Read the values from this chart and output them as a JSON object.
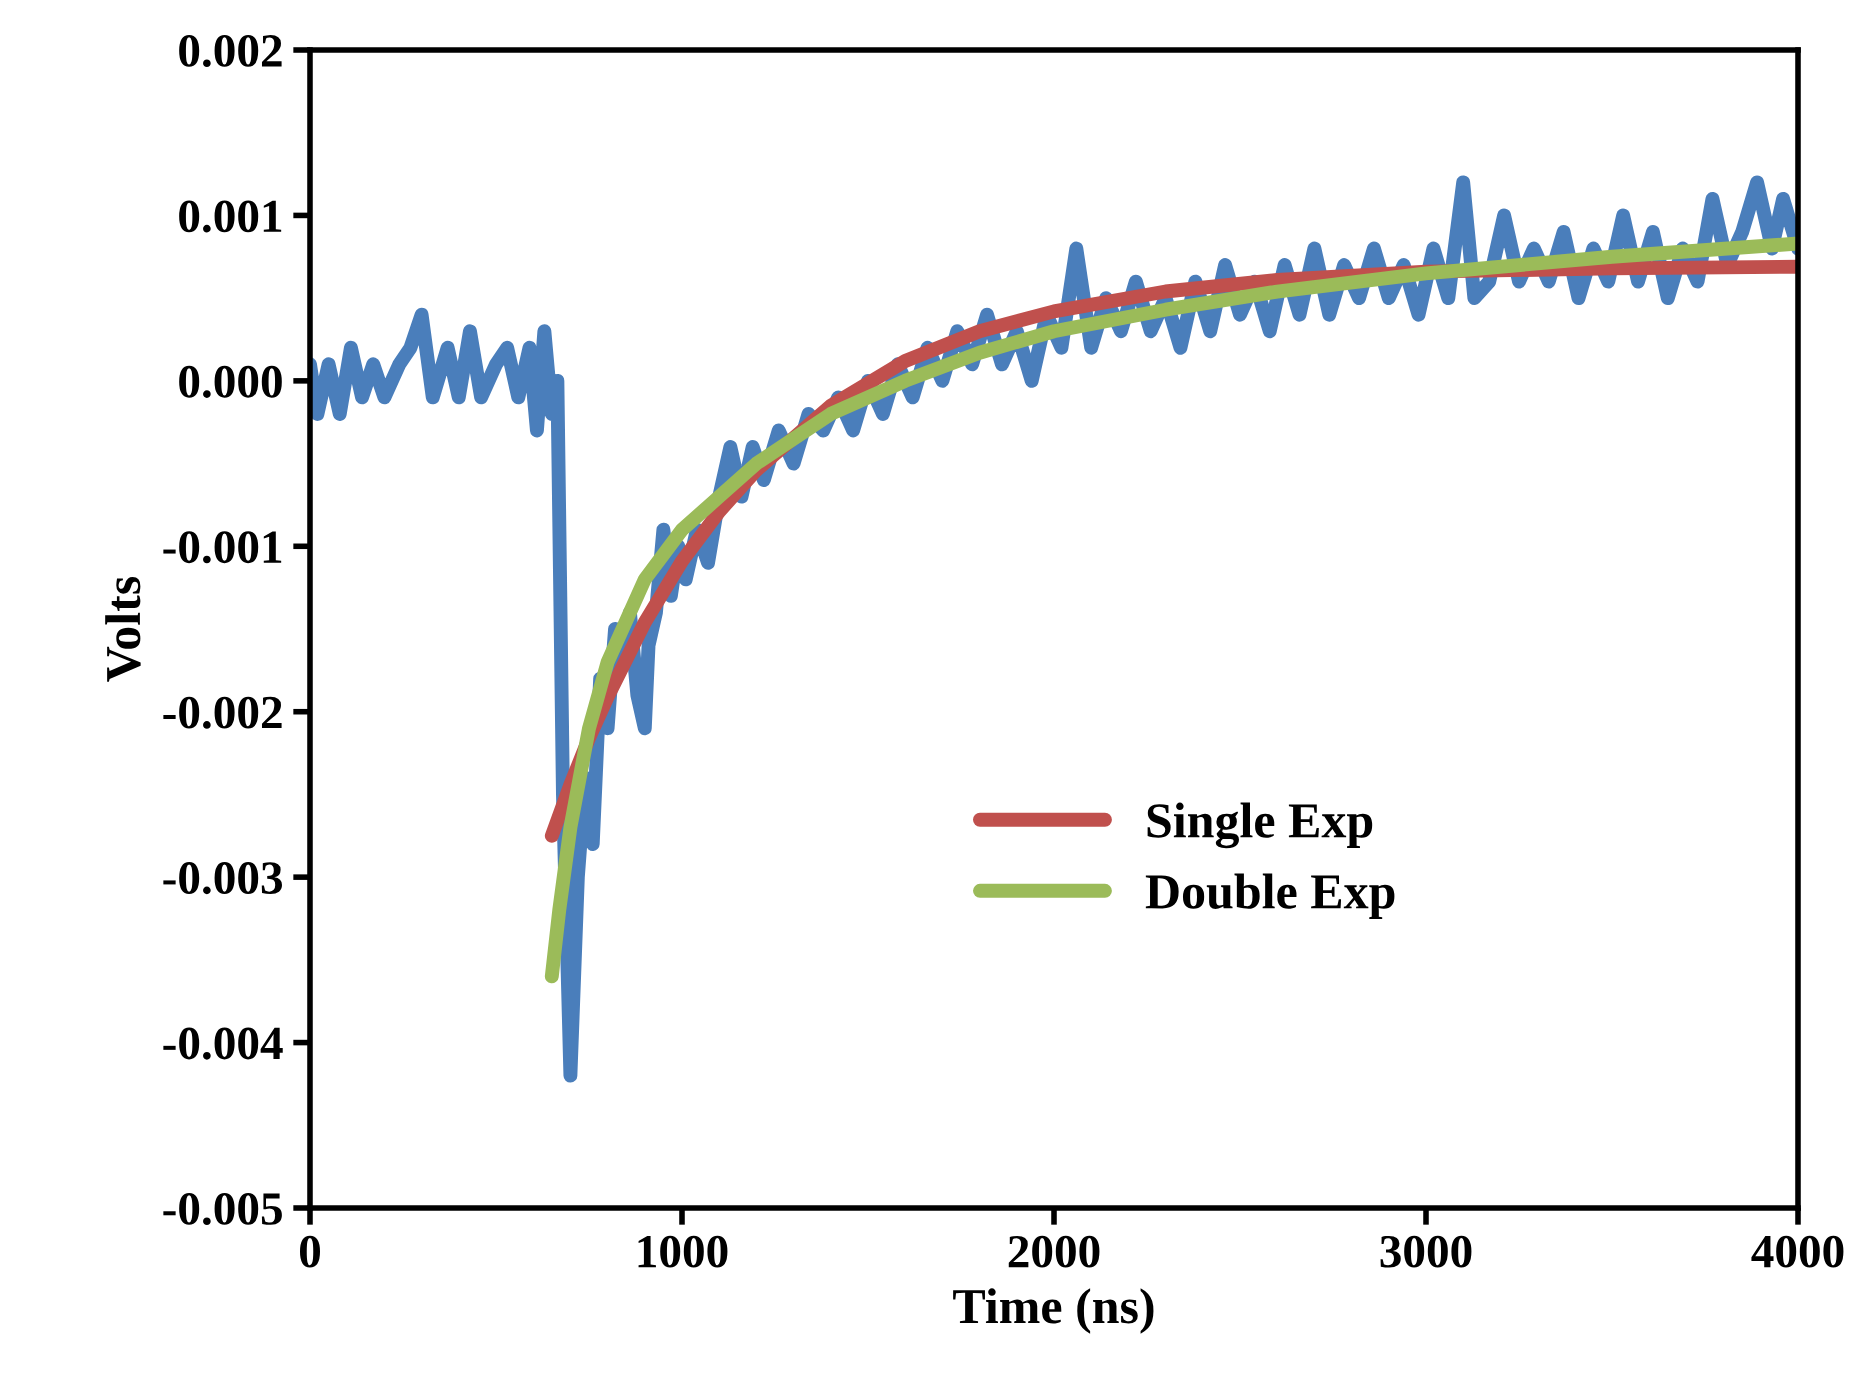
{
  "chart_data": {
    "type": "line",
    "xlabel": "Time (ns)",
    "ylabel": "Volts",
    "xlim": [
      0,
      4000
    ],
    "xticks": [
      0,
      1000,
      2000,
      3000,
      4000
    ],
    "ylim": [
      -0.005,
      0.002
    ],
    "yticks": [
      {
        "value": -0.005,
        "label": "-0.005"
      },
      {
        "value": -0.004,
        "label": "-0.004"
      },
      {
        "value": -0.003,
        "label": "-0.003"
      },
      {
        "value": -0.002,
        "label": "-0.002"
      },
      {
        "value": -0.001,
        "label": "-0.001"
      },
      {
        "value": 0,
        "label": "0.000"
      },
      {
        "value": 0.001,
        "label": "0.001"
      },
      {
        "value": 0.002,
        "label": "0.002"
      }
    ],
    "grid": false,
    "legend": "right",
    "marker": "none",
    "line_style": "solid",
    "series": [
      {
        "color": "#4a7ebb",
        "x": [
          0,
          20,
          50,
          80,
          110,
          140,
          170,
          200,
          240,
          270,
          300,
          330,
          370,
          400,
          430,
          460,
          500,
          530,
          560,
          590,
          610,
          630,
          650,
          665,
          680,
          700,
          720,
          740,
          760,
          780,
          800,
          820,
          840,
          860,
          880,
          900,
          910,
          930,
          950,
          970,
          990,
          1010,
          1040,
          1070,
          1100,
          1130,
          1160,
          1190,
          1220,
          1260,
          1300,
          1340,
          1380,
          1420,
          1460,
          1500,
          1540,
          1580,
          1620,
          1660,
          1700,
          1740,
          1780,
          1820,
          1860,
          1900,
          1940,
          1980,
          2020,
          2060,
          2100,
          2140,
          2180,
          2220,
          2260,
          2300,
          2340,
          2380,
          2420,
          2460,
          2500,
          2540,
          2580,
          2620,
          2660,
          2700,
          2740,
          2780,
          2820,
          2860,
          2900,
          2940,
          2980,
          3020,
          3060,
          3100,
          3130,
          3170,
          3210,
          3250,
          3290,
          3330,
          3370,
          3410,
          3450,
          3490,
          3530,
          3570,
          3610,
          3650,
          3690,
          3730,
          3770,
          3810,
          3850,
          3890,
          3930,
          3960,
          4000
        ],
        "values": [
          0.0001,
          -0.0002,
          0.0001,
          -0.0002,
          0.0002,
          -0.0001,
          0.0001,
          -0.0001,
          0.0001,
          0.0002,
          0.0004,
          -0.0001,
          0.0002,
          -0.0001,
          0.0003,
          -0.0001,
          0.0001,
          0.0002,
          -0.0001,
          0.0002,
          -0.0003,
          0.0003,
          -0.0002,
          0.0,
          -0.0025,
          -0.0042,
          -0.003,
          -0.0024,
          -0.0028,
          -0.0018,
          -0.0021,
          -0.0015,
          -0.0017,
          -0.0014,
          -0.0019,
          -0.0021,
          -0.0016,
          -0.0014,
          -0.0009,
          -0.0013,
          -0.001,
          -0.0012,
          -0.0009,
          -0.0011,
          -0.0007,
          -0.0004,
          -0.0007,
          -0.0004,
          -0.0006,
          -0.0003,
          -0.0005,
          -0.0002,
          -0.0003,
          -0.0001,
          -0.0003,
          0.0,
          -0.0002,
          0.0001,
          -0.0001,
          0.0002,
          0.0,
          0.0003,
          0.0001,
          0.0004,
          0.0001,
          0.0003,
          0.0,
          0.0004,
          0.0002,
          0.0008,
          0.0002,
          0.0005,
          0.0003,
          0.0006,
          0.0003,
          0.0005,
          0.0002,
          0.0006,
          0.0003,
          0.0007,
          0.0004,
          0.0006,
          0.0003,
          0.0007,
          0.0004,
          0.0008,
          0.0004,
          0.0007,
          0.0005,
          0.0008,
          0.0005,
          0.0007,
          0.0004,
          0.0008,
          0.0005,
          0.0012,
          0.0005,
          0.0006,
          0.001,
          0.0006,
          0.0008,
          0.0006,
          0.0009,
          0.0005,
          0.0008,
          0.0006,
          0.001,
          0.0006,
          0.0009,
          0.0005,
          0.0008,
          0.0006,
          0.0011,
          0.0007,
          0.0009,
          0.0012,
          0.0008,
          0.0011,
          0.0008
        ]
      },
      {
        "name": "Single Exp",
        "color": "#c0504d",
        "x": [
          650,
          700,
          750,
          800,
          900,
          1000,
          1100,
          1200,
          1400,
          1600,
          1800,
          2000,
          2300,
          2600,
          3000,
          3500,
          4000
        ],
        "values": [
          -0.00275,
          -0.00244,
          -0.00216,
          -0.00191,
          -0.00146,
          -0.00109,
          -0.00079,
          -0.00054,
          -0.00015,
          0.00012,
          0.0003,
          0.00042,
          0.00054,
          0.00061,
          0.00066,
          0.00068,
          0.00069
        ]
      },
      {
        "name": "Double Exp",
        "color": "#9bbb59",
        "x": [
          650,
          670,
          700,
          750,
          800,
          900,
          1000,
          1100,
          1200,
          1400,
          1600,
          1800,
          2000,
          2300,
          2600,
          3000,
          3500,
          4000
        ],
        "values": [
          -0.0036,
          -0.0032,
          -0.0027,
          -0.0021,
          -0.0017,
          -0.0012,
          -0.0009,
          -0.0007,
          -0.0005,
          -0.0002,
          0.0,
          0.00017,
          0.0003,
          0.00043,
          0.00054,
          0.00065,
          0.00075,
          0.00083
        ]
      }
    ]
  }
}
